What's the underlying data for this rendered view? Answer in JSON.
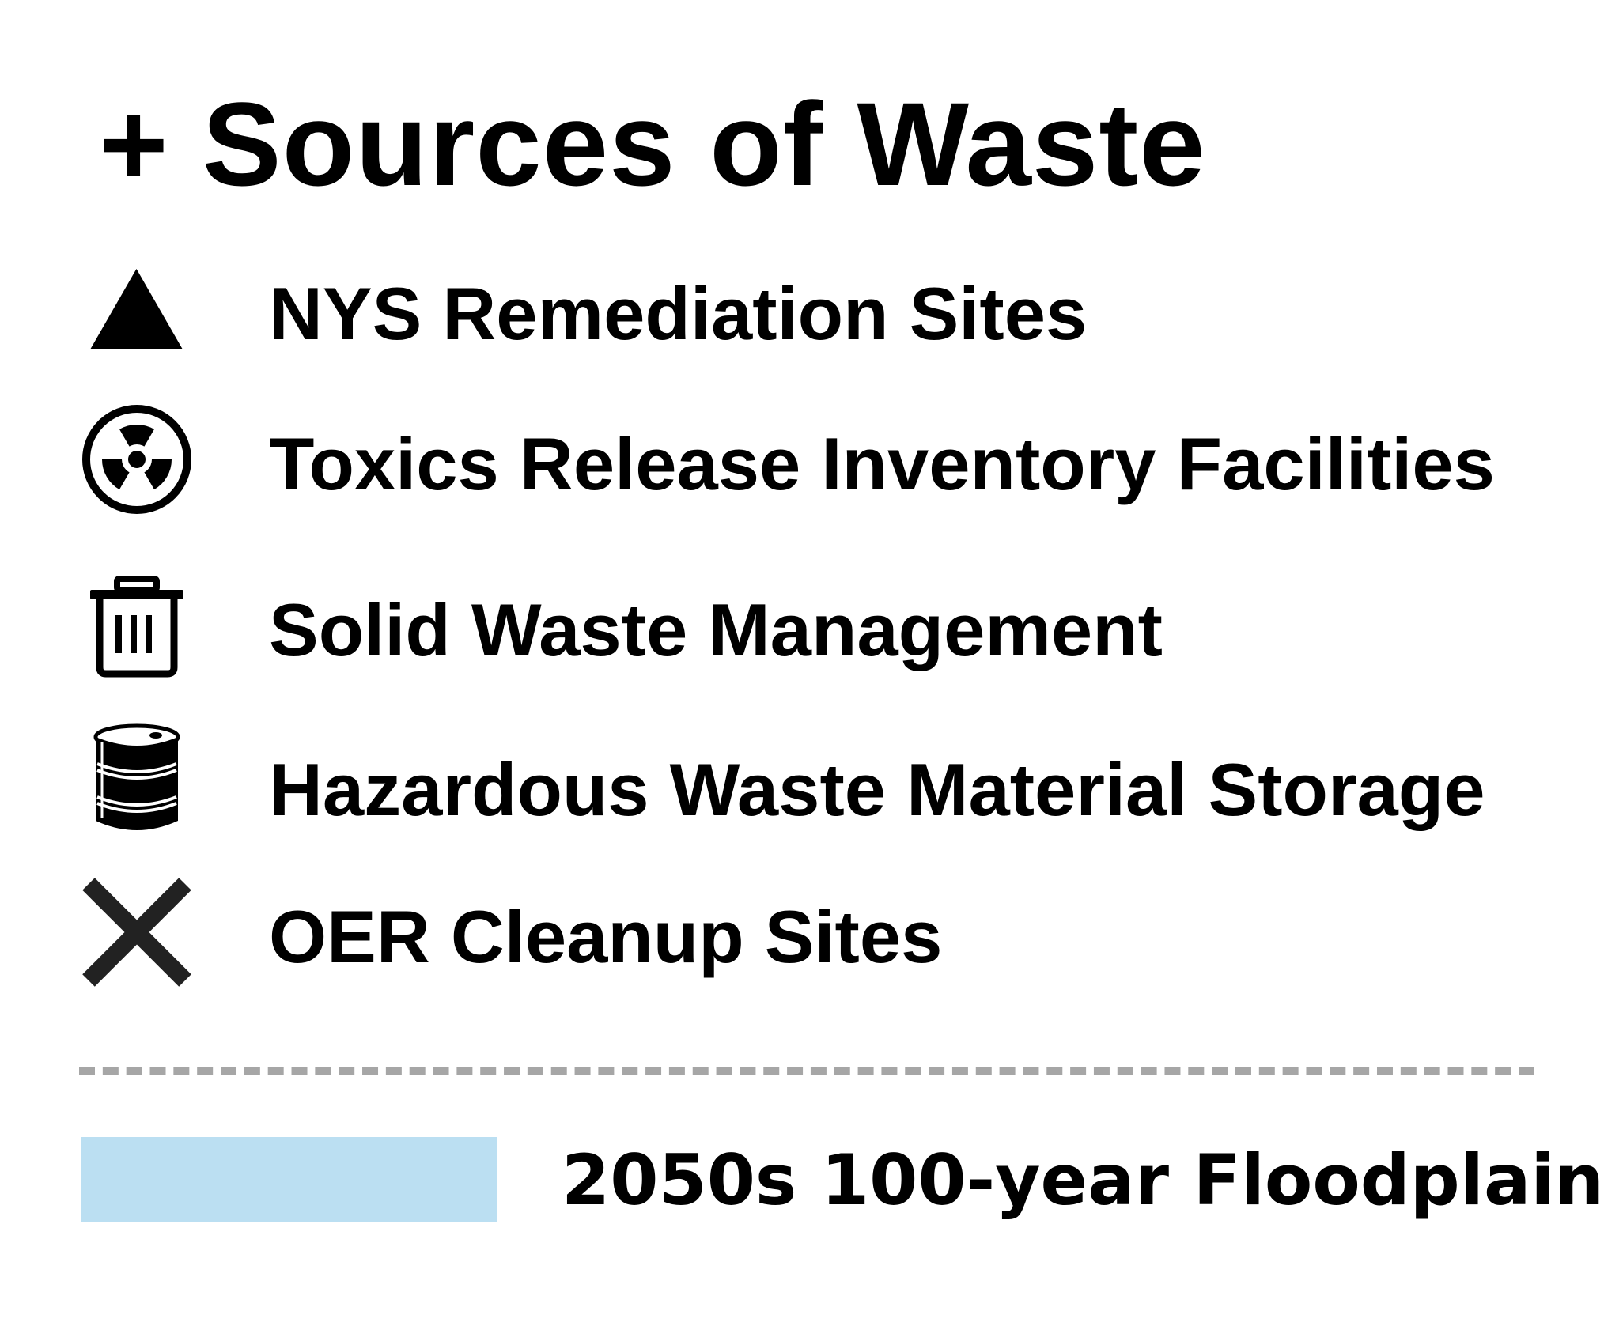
{
  "legend": {
    "title_prefix": "+",
    "title": "Sources of Waste",
    "items": [
      {
        "icon": "triangle-icon",
        "label": "NYS Remediation Sites"
      },
      {
        "icon": "radiation-icon",
        "label": "Toxics Release Inventory Facilities"
      },
      {
        "icon": "trash-bin-icon",
        "label": "Solid Waste Management"
      },
      {
        "icon": "oil-barrel-icon",
        "label": "Hazardous Waste Material Storage"
      },
      {
        "icon": "x-mark-icon",
        "label": "OER Cleanup Sites"
      }
    ],
    "floodplain": {
      "label": "2050s 100-year Floodplain",
      "color": "#bbdff2"
    },
    "colors": {
      "icon": "#000000",
      "x_mark": "#222222",
      "divider": "#a6a6a6"
    }
  }
}
